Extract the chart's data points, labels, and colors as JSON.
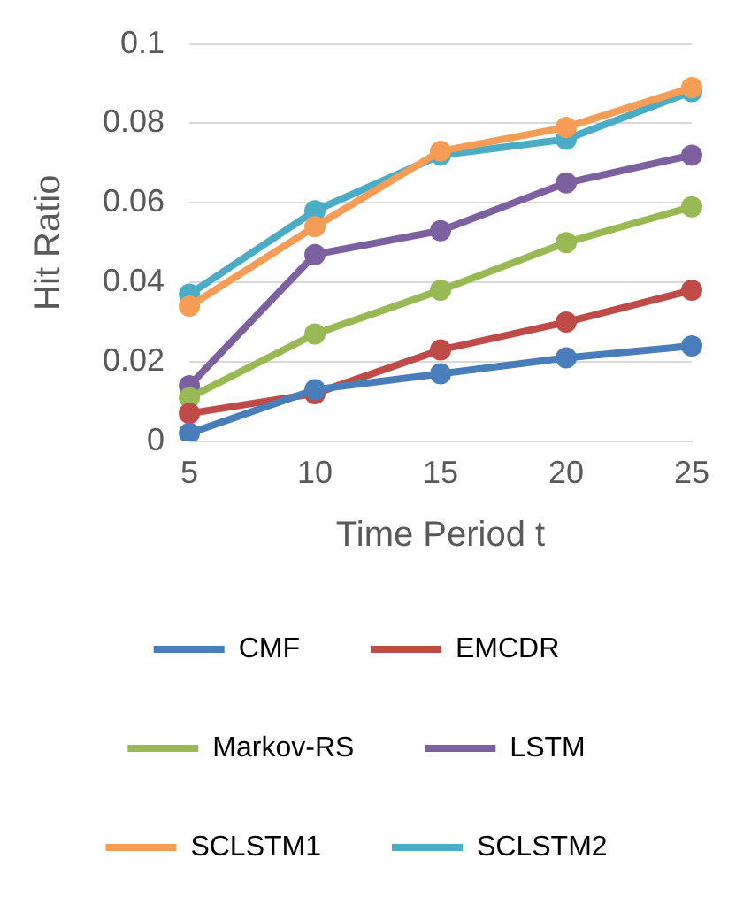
{
  "chart_data": {
    "type": "line",
    "xlabel": "Time Period t",
    "ylabel": "Hit Ratio",
    "categories": [
      "5",
      "10",
      "15",
      "20",
      "25"
    ],
    "series": [
      {
        "name": "CMF",
        "color": "#4a7ebb",
        "values": [
          0.002,
          0.013,
          0.017,
          0.021,
          0.024
        ]
      },
      {
        "name": "EMCDR",
        "color": "#be4b48",
        "values": [
          0.007,
          0.012,
          0.023,
          0.03,
          0.038
        ]
      },
      {
        "name": "Markov-RS",
        "color": "#98b954",
        "values": [
          0.011,
          0.027,
          0.038,
          0.05,
          0.059
        ]
      },
      {
        "name": "LSTM",
        "color": "#7d60a0",
        "values": [
          0.014,
          0.047,
          0.053,
          0.065,
          0.072
        ]
      },
      {
        "name": "SCLSTM1",
        "color": "#f59d56",
        "values": [
          0.034,
          0.054,
          0.073,
          0.079,
          0.089
        ]
      },
      {
        "name": "SCLSTM2",
        "color": "#4bacc6",
        "values": [
          0.037,
          0.058,
          0.072,
          0.076,
          0.088
        ]
      }
    ],
    "ylim": [
      0,
      0.1
    ],
    "yticks": [
      0,
      0.02,
      0.04,
      0.06,
      0.08,
      0.1
    ],
    "grid": "y",
    "legend": "bottom",
    "marker": "circle",
    "line_style": "solid"
  }
}
